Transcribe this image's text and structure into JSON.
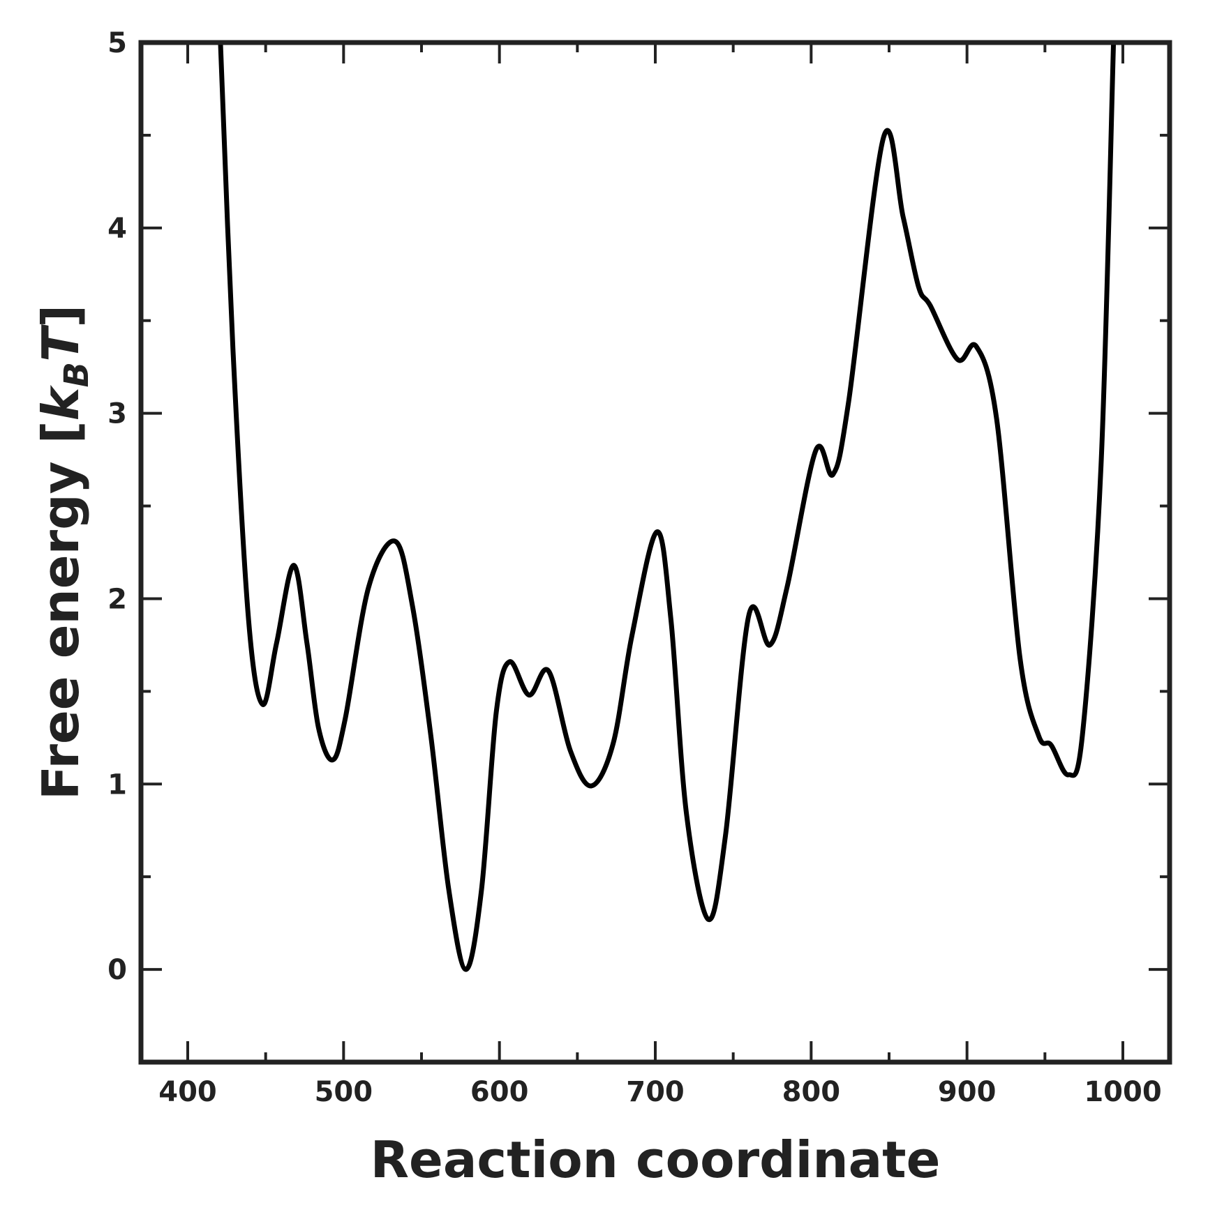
{
  "chart_data": {
    "type": "line",
    "xlabel": "Reaction coordinate",
    "ylabel": [
      "Free energy [",
      "k",
      "B",
      "T",
      "]"
    ],
    "xlim": [
      370,
      1030
    ],
    "ylim": [
      -0.5,
      5
    ],
    "xticks": [
      400,
      500,
      600,
      700,
      800,
      900,
      1000
    ],
    "yticks": [
      0,
      1,
      2,
      3,
      4,
      5
    ],
    "minor_xticks": [
      450,
      550,
      650,
      750,
      850,
      950
    ],
    "minor_yticks": [
      -0.5,
      0.5,
      1.5,
      2.5,
      3.5,
      4.5
    ],
    "series": [
      {
        "color": "#000000",
        "x": [
          421,
          429,
          439,
          448,
          457,
          468,
          476.5,
          484,
          493,
          501,
          516,
          533,
          544,
          556,
          567.5,
          578.5,
          588.5,
          598,
          606.5,
          619,
          631.5,
          645.5,
          659,
          673,
          685,
          701,
          710,
          720,
          734,
          745,
          760,
          773.5,
          784.5,
          803,
          814,
          824,
          846.5,
          859,
          869,
          876.5,
          894,
          906,
          919,
          934,
          946,
          954,
          965,
          974,
          986,
          994
        ],
        "values": [
          5,
          3.35,
          1.89,
          1.43,
          1.76,
          2.18,
          1.76,
          1.3,
          1.13,
          1.35,
          2.06,
          2.31,
          1.97,
          1.26,
          0.43,
          0,
          0.43,
          1.39,
          1.66,
          1.48,
          1.61,
          1.18,
          0.99,
          1.22,
          1.8,
          2.36,
          1.89,
          0.84,
          0.27,
          0.72,
          1.91,
          1.75,
          2.06,
          2.8,
          2.67,
          3.06,
          4.49,
          4.06,
          3.68,
          3.58,
          3.29,
          3.36,
          2.97,
          1.68,
          1.26,
          1.21,
          1.05,
          1.26,
          2.72,
          5
        ]
      }
    ]
  }
}
